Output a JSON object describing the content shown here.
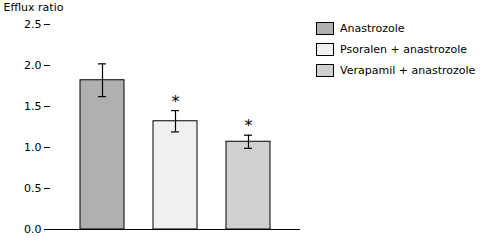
{
  "chart_data": {
    "type": "bar",
    "categories": [
      "Anastrozole",
      "Psoralen + anastrozole",
      "Verapamil + anastrozole"
    ],
    "values": [
      1.82,
      1.32,
      1.07
    ],
    "errors": [
      0.2,
      0.13,
      0.08
    ],
    "colors": [
      "#b0b0b0",
      "#f0f0f0",
      "#d0d0d0"
    ],
    "ylabel": "Efflux ratio",
    "ylim": [
      0.0,
      2.5
    ],
    "yticks": [
      {
        "value": 0,
        "label": "0.0"
      },
      0.5,
      {
        "value": 1,
        "label": "1.0"
      },
      1.5,
      {
        "value": 2,
        "label": "2.0"
      },
      2.5
    ],
    "annotations": [
      {
        "category": "Psoralen + anastrozole",
        "text": "*"
      },
      {
        "category": "Verapamil + anastrozole",
        "text": "*"
      }
    ],
    "legend": "right",
    "tick_labels": "y"
  }
}
